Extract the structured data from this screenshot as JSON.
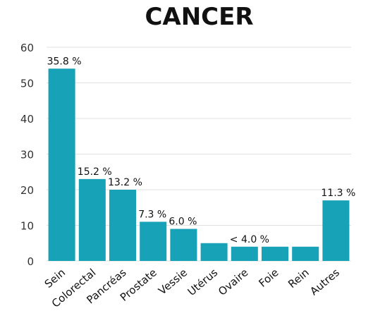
{
  "chart_data": {
    "type": "bar",
    "title": "CANCER",
    "categories": [
      "Sein",
      "Colorectal",
      "Pancréas",
      "Prostate",
      "Vessie",
      "Utérus",
      "Ovaire",
      "Foie",
      "Rein",
      "Autres"
    ],
    "values": [
      54,
      23,
      20,
      11,
      9,
      5,
      4,
      4,
      4,
      17
    ],
    "data_labels": [
      "35.8 %",
      "15.2 %",
      "13.2 %",
      "7.3 %",
      "6.0 %",
      "",
      "< 4.0 %",
      "",
      "",
      "11.3 %"
    ],
    "ylim": [
      0,
      60
    ],
    "yticks": [
      0,
      10,
      20,
      30,
      40,
      50,
      60
    ],
    "grid": true,
    "xlabel": "",
    "ylabel": "",
    "bar_color": "#17a2b8",
    "grid_color": "#e0e0e0",
    "text_color": "#333333"
  }
}
